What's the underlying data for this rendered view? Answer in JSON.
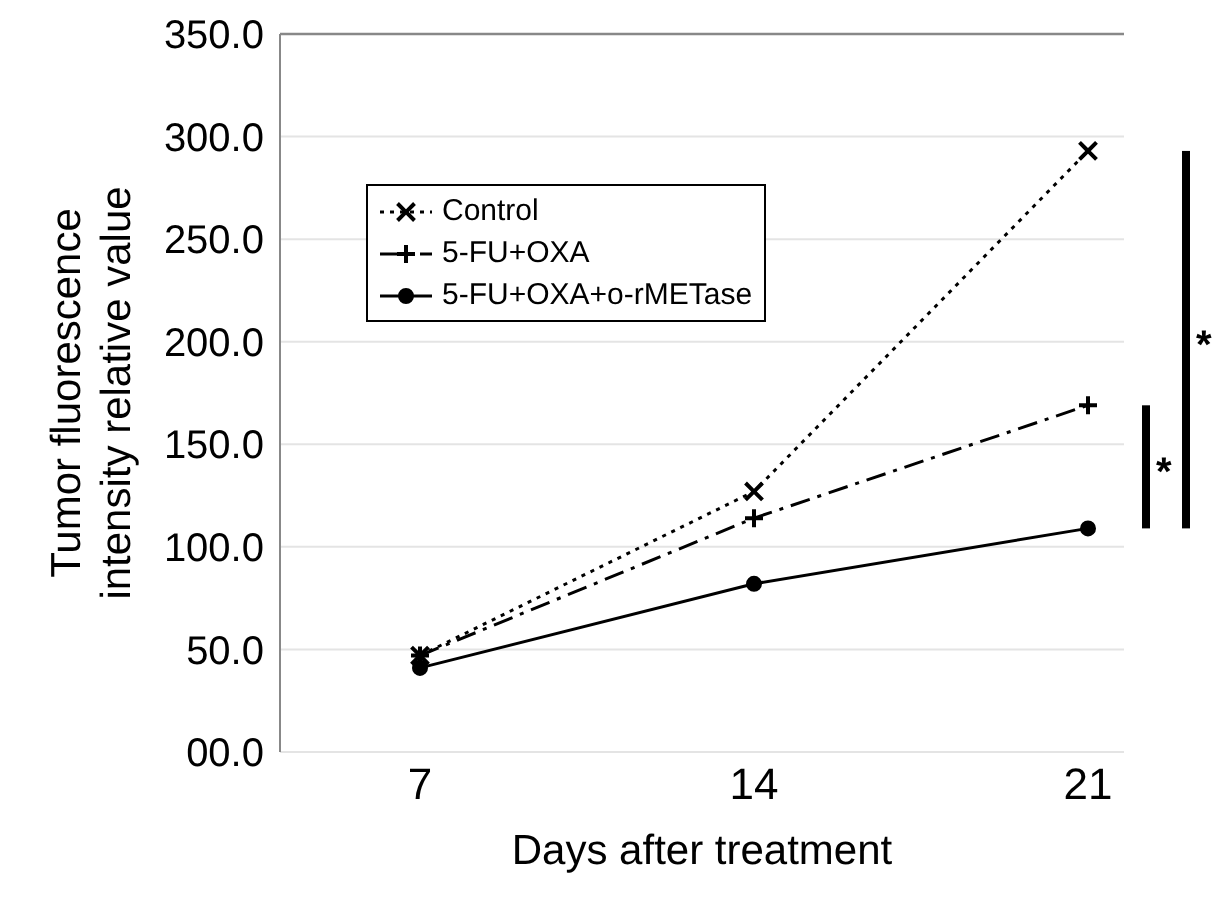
{
  "chart_data": {
    "type": "line",
    "xlabel": "Days after treatment",
    "ylabel": "Tumor fluorescence\nintensity relative value",
    "categories": [
      "7",
      "14",
      "21"
    ],
    "series": [
      {
        "name": "Control",
        "color": "#000000",
        "values": [
          47,
          127,
          293
        ],
        "marker": "x",
        "line_style": "dotted"
      },
      {
        "name": "5-FU+OXA",
        "color": "#000000",
        "values": [
          47,
          114,
          169
        ],
        "marker": "cross",
        "line_style": "dashed"
      },
      {
        "name": "5-FU+OXA+o-rMETase",
        "color": "#000000",
        "values": [
          41,
          82,
          109
        ],
        "marker": "circle",
        "line_style": "solid"
      }
    ],
    "ylim": [
      0,
      350
    ],
    "yticks": [
      {
        "value": 0,
        "label": "00.0"
      },
      {
        "value": 50,
        "label": "50.0"
      },
      {
        "value": 100,
        "label": "100.0"
      },
      {
        "value": 150,
        "label": "150.0"
      },
      {
        "value": 200,
        "label": "200.0"
      },
      {
        "value": 250,
        "label": "250.0"
      },
      {
        "value": 300,
        "label": "300.0"
      },
      {
        "value": 350,
        "label": "350.0"
      }
    ],
    "grid": "y",
    "legend": "top left",
    "annotations": [
      "*",
      "*"
    ]
  }
}
